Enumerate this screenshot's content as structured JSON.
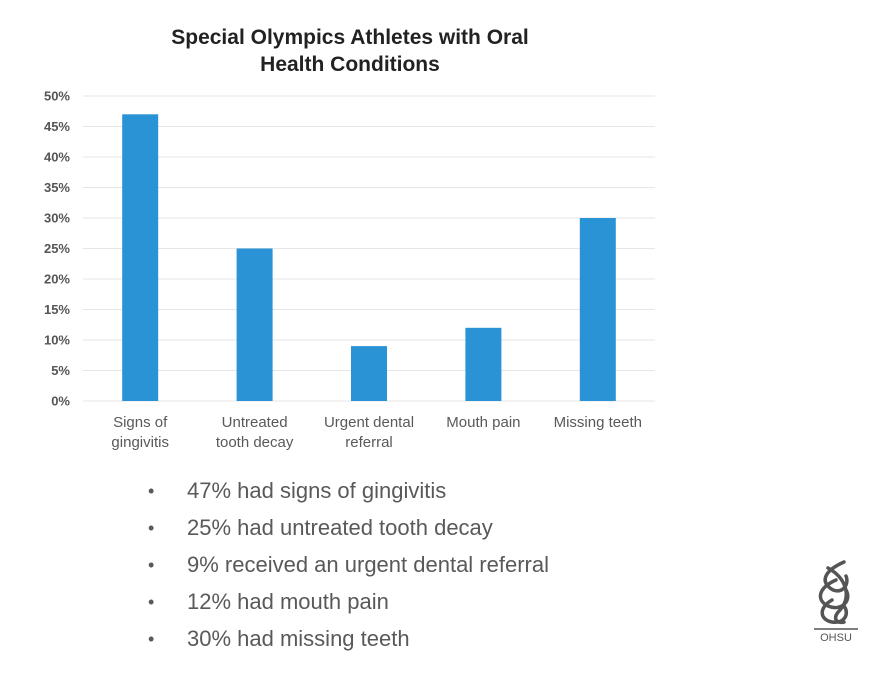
{
  "chart_data": {
    "type": "bar",
    "title": "Special Olympics Athletes with Oral Health Conditions",
    "title_lines": [
      "Special Olympics Athletes with Oral",
      "Health Conditions"
    ],
    "categories": [
      [
        "Signs of",
        "gingivitis"
      ],
      [
        "Untreated",
        "tooth decay"
      ],
      [
        "Urgent dental",
        "referral"
      ],
      [
        "Mouth pain"
      ],
      [
        "Missing teeth"
      ]
    ],
    "values": [
      47,
      25,
      9,
      12,
      30
    ],
    "ylim": [
      0,
      50
    ],
    "yticks": [
      "0%",
      "5%",
      "10%",
      "15%",
      "20%",
      "25%",
      "30%",
      "35%",
      "40%",
      "45%",
      "50%"
    ],
    "grid": true,
    "bar_color": "#2A93D5"
  },
  "bullets": [
    "47% had signs of gingivitis",
    "25% had untreated tooth decay",
    "9% received an urgent dental referral",
    "12% had mouth pain",
    "30% had missing teeth"
  ],
  "bullet_char": "•",
  "logo": {
    "text": "OHSU"
  }
}
